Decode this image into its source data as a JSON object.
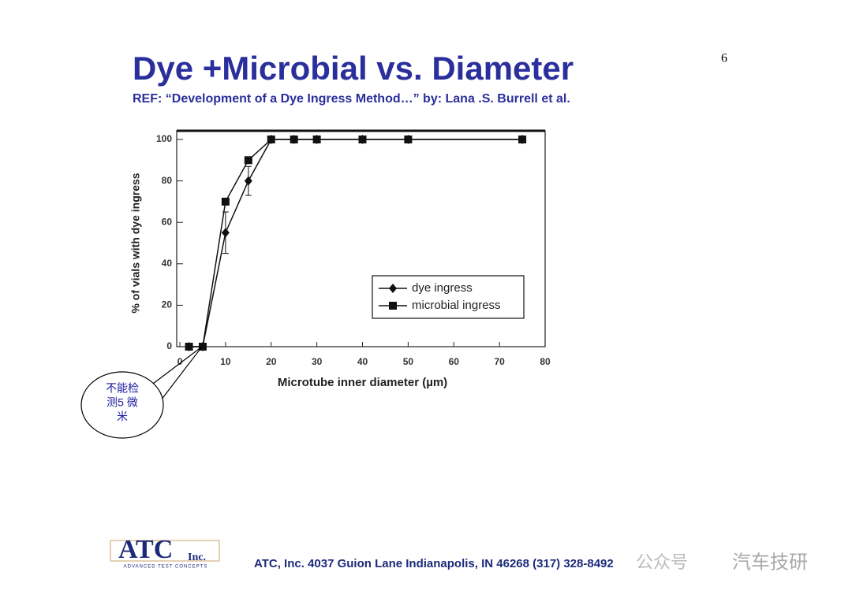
{
  "page_number": "6",
  "title": "Dye +Microbial vs. Diameter",
  "reference": "REF: “Development of  a Dye Ingress Method…” by: Lana .S. Burrell et al.",
  "chart_data": {
    "type": "line",
    "x_label": "Microtube inner diameter (µm)",
    "y_label": "% of vials with dye ingress",
    "x": [
      2,
      5,
      10,
      15,
      20,
      25,
      30,
      40,
      50,
      75
    ],
    "series": [
      {
        "name": "dye ingress",
        "color": "#111111",
        "marker": "diamond",
        "values": [
          0,
          0,
          55,
          80,
          100,
          100,
          100,
          100,
          100,
          100
        ],
        "errors": [
          0,
          0,
          10,
          7,
          0,
          0,
          0,
          0,
          0,
          0
        ]
      },
      {
        "name": "microbial ingress",
        "color": "#111111",
        "marker": "square",
        "values": [
          0,
          0,
          70,
          90,
          100,
          100,
          100,
          100,
          100,
          100
        ]
      }
    ],
    "xlim": [
      0,
      80
    ],
    "xticks": [
      0,
      10,
      20,
      30,
      40,
      50,
      60,
      70,
      80
    ],
    "ylim": [
      0,
      100
    ],
    "yticks": [
      0,
      20,
      40,
      60,
      80,
      100
    ],
    "legend": "lower right"
  },
  "callout": {
    "lines": [
      "不能检",
      "测5 微",
      "米"
    ]
  },
  "footer": {
    "logo": "ATC",
    "logo_suffix": "Inc.",
    "logo_tagline": "ADVANCED TEST CONCEPTS",
    "address": "ATC, Inc.  4037 Guion Lane  Indianapolis, IN 46268 (317) 328-8492"
  },
  "watermark": {
    "account": "公众号",
    "name": "汽车技研"
  }
}
